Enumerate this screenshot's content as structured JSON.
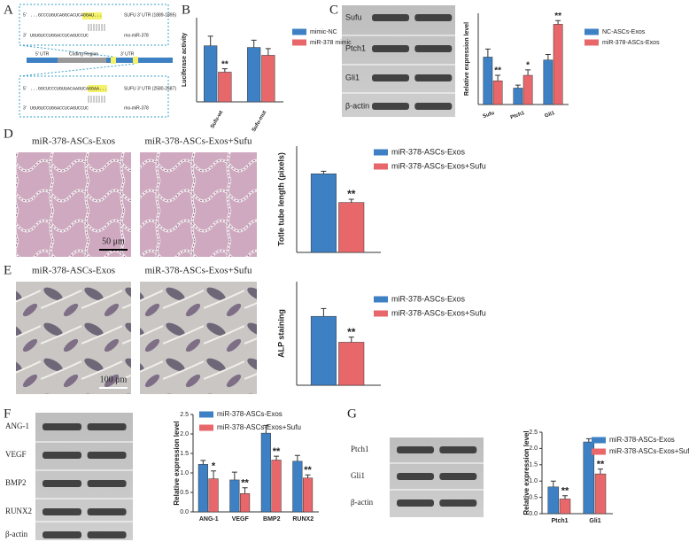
{
  "figure": {
    "panels": [
      "A",
      "B",
      "C",
      "D",
      "E",
      "F",
      "G"
    ],
    "panel_A": {
      "top": [
        "5'",
        "...GCCCUGUCAGGCACUCAGGAU...",
        "SUFU 3' UTR (1889-1895)",
        "3'",
        "UGUGUCCUGGACCUCAGUCCUC",
        "rno-miR-378"
      ],
      "gene": [
        "5' UTR",
        "Coding Region",
        "3' UTR"
      ],
      "bottom": [
        "5'",
        "...GGCUCCCUGUUACAAGUCAGGAA...",
        "SUFU 3' UTR (2580-2587)",
        "3'",
        "UGUGUCCUGGACCUCAGUCCUC",
        "rno-miR-378"
      ]
    },
    "blot_C": [
      "Sufu",
      "Ptch1",
      "Gli1",
      "β-actin"
    ],
    "blot_F": [
      "ANG-1",
      "VEGF",
      "BMP2",
      "RUNX2",
      "β-actin"
    ],
    "blot_G": [
      "Ptch1",
      "Gli1",
      "β-actin"
    ],
    "micro_D": [
      "miR-378-ASCs-Exos",
      "miR-378-ASCs-Exos+Sufu"
    ],
    "micro_E": [
      "miR-378-ASCs-Exos",
      "miR-378-ASCs-Exos+Sufu"
    ],
    "scale_D": "50 μm",
    "scale_E": "100 μm"
  },
  "chart_data": [
    {
      "type": "bar",
      "y_label": "Luciferase activity",
      "categories": [
        "Sufu-wt",
        "Sufu-mut"
      ],
      "ylim": [
        0,
        1.5
      ],
      "series": [
        {
          "name": "mimic-NC",
          "color": "#3d80c4",
          "values": [
            1.0,
            0.97
          ],
          "errors": [
            0.17,
            0.13
          ],
          "annotations": [
            null,
            null
          ]
        },
        {
          "name": "miR-378 mimic",
          "color": "#e8676b",
          "values": [
            0.53,
            0.83
          ],
          "errors": [
            0.06,
            0.12
          ],
          "annotations": [
            "**",
            null
          ]
        }
      ]
    },
    {
      "type": "bar",
      "y_label": "Relative expression level",
      "categories": [
        "Sufu",
        "Ptch1",
        "Gli1"
      ],
      "ylim": [
        0,
        2.5
      ],
      "series": [
        {
          "name": "NC-ASCs-Exos",
          "color": "#3d80c4",
          "values": [
            1.3,
            0.45,
            1.22
          ],
          "errors": [
            0.22,
            0.08,
            0.15
          ],
          "annotations": [
            null,
            null,
            null
          ]
        },
        {
          "name": "miR-378-ASCs-Exos",
          "color": "#e8676b",
          "values": [
            0.65,
            0.8,
            2.2
          ],
          "errors": [
            0.15,
            0.15,
            0.1
          ],
          "annotations": [
            "**",
            "*",
            "**"
          ]
        }
      ]
    },
    {
      "type": "bar",
      "y_label": "Totle tube length (pixels)",
      "categories": [
        null
      ],
      "ylim": [
        0,
        5000
      ],
      "series": [
        {
          "name": "miR-378-ASCs-Exos",
          "color": "#3d80c4",
          "values": [
            3700
          ],
          "errors": [
            120
          ],
          "annotations": [
            null
          ]
        },
        {
          "name": "miR-378-ASCs-Exos+Sufu",
          "color": "#e8676b",
          "values": [
            2350
          ],
          "errors": [
            150
          ],
          "annotations": [
            "**"
          ]
        }
      ]
    },
    {
      "type": "bar",
      "y_label": "ALP staining",
      "categories": [
        null
      ],
      "ylim": [
        0,
        2
      ],
      "series": [
        {
          "name": "miR-378-ASCs-Exos",
          "color": "#3d80c4",
          "values": [
            1.33
          ],
          "errors": [
            0.15
          ],
          "annotations": [
            null
          ]
        },
        {
          "name": "miR-378-ASCs-Exos+Sufu",
          "color": "#e8676b",
          "values": [
            0.83
          ],
          "errors": [
            0.1
          ],
          "annotations": [
            "**"
          ]
        }
      ]
    },
    {
      "type": "bar",
      "y_label": "Relative expression level",
      "categories": [
        "ANG-1",
        "VEGF",
        "BMP2",
        "RUNX2"
      ],
      "ylim": [
        0,
        2.5
      ],
      "yticks": [
        {
          "value": 0,
          "label": "0.0"
        },
        {
          "value": 0.5,
          "label": "0.5"
        },
        {
          "value": 1,
          "label": "1.0"
        },
        {
          "value": 1.5,
          "label": "1.5"
        },
        {
          "value": 2,
          "label": "2.0"
        },
        {
          "value": 2.5,
          "label": "2.5"
        }
      ],
      "series": [
        {
          "name": "miR-378-ASCs-Exos",
          "color": "#3d80c4",
          "values": [
            1.22,
            0.82,
            2.02,
            1.3
          ],
          "errors": [
            0.1,
            0.2,
            0.2,
            0.15
          ],
          "annotations": [
            null,
            null,
            null,
            null
          ]
        },
        {
          "name": "miR-378-ASCs-Exos+Sufu",
          "color": "#e8676b",
          "values": [
            0.85,
            0.47,
            1.33,
            0.87
          ],
          "errors": [
            0.2,
            0.15,
            0.1,
            0.08
          ],
          "annotations": [
            "*",
            "**",
            "**",
            "**"
          ]
        }
      ]
    },
    {
      "type": "bar",
      "y_label": "Relative expression level",
      "categories": [
        "Ptch1",
        "Gli1"
      ],
      "ylim": [
        0,
        2.5
      ],
      "yticks": [
        {
          "value": 0,
          "label": "0.0"
        },
        {
          "value": 0.5,
          "label": "0.5"
        },
        {
          "value": 1,
          "label": "1.0"
        },
        {
          "value": 1.5,
          "label": "1.5"
        },
        {
          "value": 2,
          "label": "2.0"
        },
        {
          "value": 2.5,
          "label": "2.5"
        }
      ],
      "series": [
        {
          "name": "miR-378-ASCs-Exos",
          "color": "#3d80c4",
          "values": [
            0.82,
            2.2
          ],
          "errors": [
            0.18,
            0.1
          ],
          "annotations": [
            null,
            null
          ]
        },
        {
          "name": "miR-378-ASCs-Exos+Sufu",
          "color": "#e8676b",
          "values": [
            0.45,
            1.22
          ],
          "errors": [
            0.1,
            0.15
          ],
          "annotations": [
            "**",
            "**"
          ]
        }
      ]
    }
  ]
}
